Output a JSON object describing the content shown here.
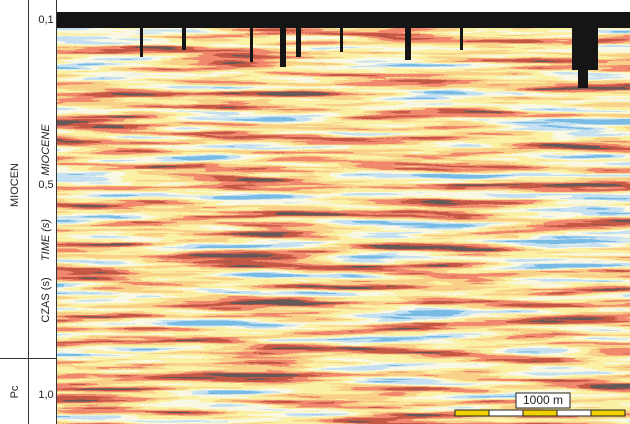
{
  "axis": {
    "ticks": [
      "0,1",
      "0,5",
      "1,0"
    ],
    "label_pl": "CZAS (s)",
    "label_en": "TIME (s)"
  },
  "units": {
    "epoch_pl": "MIOCEN",
    "epoch_en": "MIOCENE",
    "lower": "Pc"
  },
  "scale_bar": {
    "label": "1000 m"
  }
}
